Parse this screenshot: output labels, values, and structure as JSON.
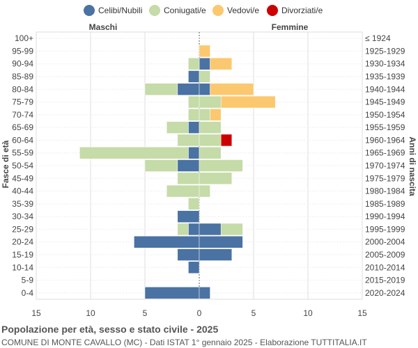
{
  "chart_data": {
    "type": "bar",
    "orientation": "horizontal-population-pyramid",
    "title": "Popolazione per età, sesso e stato civile - 2025",
    "subtitle": "COMUNE DI MONTE CAVALLO (MC) - Dati ISTAT 1° gennaio 2025 - Elaborazione TUTTITALIA.IT",
    "left_label": "Maschi",
    "right_label": "Femmine",
    "ylabel_left": "Fasce di età",
    "ylabel_right": "Anni di nascita",
    "xlim": [
      -15,
      15
    ],
    "x_ticks": [
      -15,
      -10,
      -5,
      0,
      5,
      10,
      15
    ],
    "x_tick_labels": [
      "15",
      "10",
      "5",
      "0",
      "5",
      "10",
      "15"
    ],
    "grid": true,
    "legend_position": "top",
    "categories": [
      "100+",
      "95-99",
      "90-94",
      "85-89",
      "80-84",
      "75-79",
      "70-74",
      "65-69",
      "60-64",
      "55-59",
      "50-54",
      "45-49",
      "40-44",
      "35-39",
      "30-34",
      "25-29",
      "20-24",
      "15-19",
      "10-14",
      "5-9",
      "0-4"
    ],
    "birth_years": [
      "≤ 1924",
      "1925-1929",
      "1930-1934",
      "1935-1939",
      "1940-1944",
      "1945-1949",
      "1950-1954",
      "1955-1959",
      "1960-1964",
      "1965-1969",
      "1970-1974",
      "1975-1979",
      "1980-1984",
      "1985-1989",
      "1990-1994",
      "1995-1999",
      "2000-2004",
      "2005-2009",
      "2010-2014",
      "2015-2019",
      "2020-2024"
    ],
    "series": [
      {
        "name": "Celibi/Nubili",
        "color": "#4a72a3",
        "males": [
          0,
          0,
          0,
          1,
          2,
          0,
          0,
          1,
          0,
          1,
          2,
          0,
          0,
          0,
          2,
          1,
          6,
          2,
          1,
          0,
          5
        ],
        "females": [
          0,
          0,
          1,
          0,
          1,
          0,
          0,
          0,
          0,
          0,
          0,
          0,
          0,
          0,
          0,
          2,
          4,
          3,
          0,
          0,
          1
        ]
      },
      {
        "name": "Coniugati/e",
        "color": "#c5dba8",
        "males": [
          0,
          0,
          1,
          0,
          3,
          1,
          1,
          2,
          2,
          10,
          3,
          2,
          3,
          1,
          0,
          1,
          0,
          0,
          0,
          0,
          0
        ],
        "females": [
          0,
          0,
          0,
          1,
          0,
          2,
          1,
          2,
          2,
          2,
          4,
          3,
          1,
          0,
          0,
          2,
          0,
          0,
          0,
          0,
          0
        ]
      },
      {
        "name": "Vedovi/e",
        "color": "#fbc86f",
        "males": [
          0,
          0,
          0,
          0,
          0,
          0,
          0,
          0,
          0,
          0,
          0,
          0,
          0,
          0,
          0,
          0,
          0,
          0,
          0,
          0,
          0
        ],
        "females": [
          0,
          1,
          2,
          0,
          4,
          5,
          1,
          0,
          0,
          0,
          0,
          0,
          0,
          0,
          0,
          0,
          0,
          0,
          0,
          0,
          0
        ]
      },
      {
        "name": "Divorziati/e",
        "color": "#cc0000",
        "males": [
          0,
          0,
          0,
          0,
          0,
          0,
          0,
          0,
          0,
          0,
          0,
          0,
          0,
          0,
          0,
          0,
          0,
          0,
          0,
          0,
          0
        ],
        "females": [
          0,
          0,
          0,
          0,
          0,
          0,
          0,
          0,
          1,
          0,
          0,
          0,
          0,
          0,
          0,
          0,
          0,
          0,
          0,
          0,
          0
        ]
      }
    ]
  }
}
